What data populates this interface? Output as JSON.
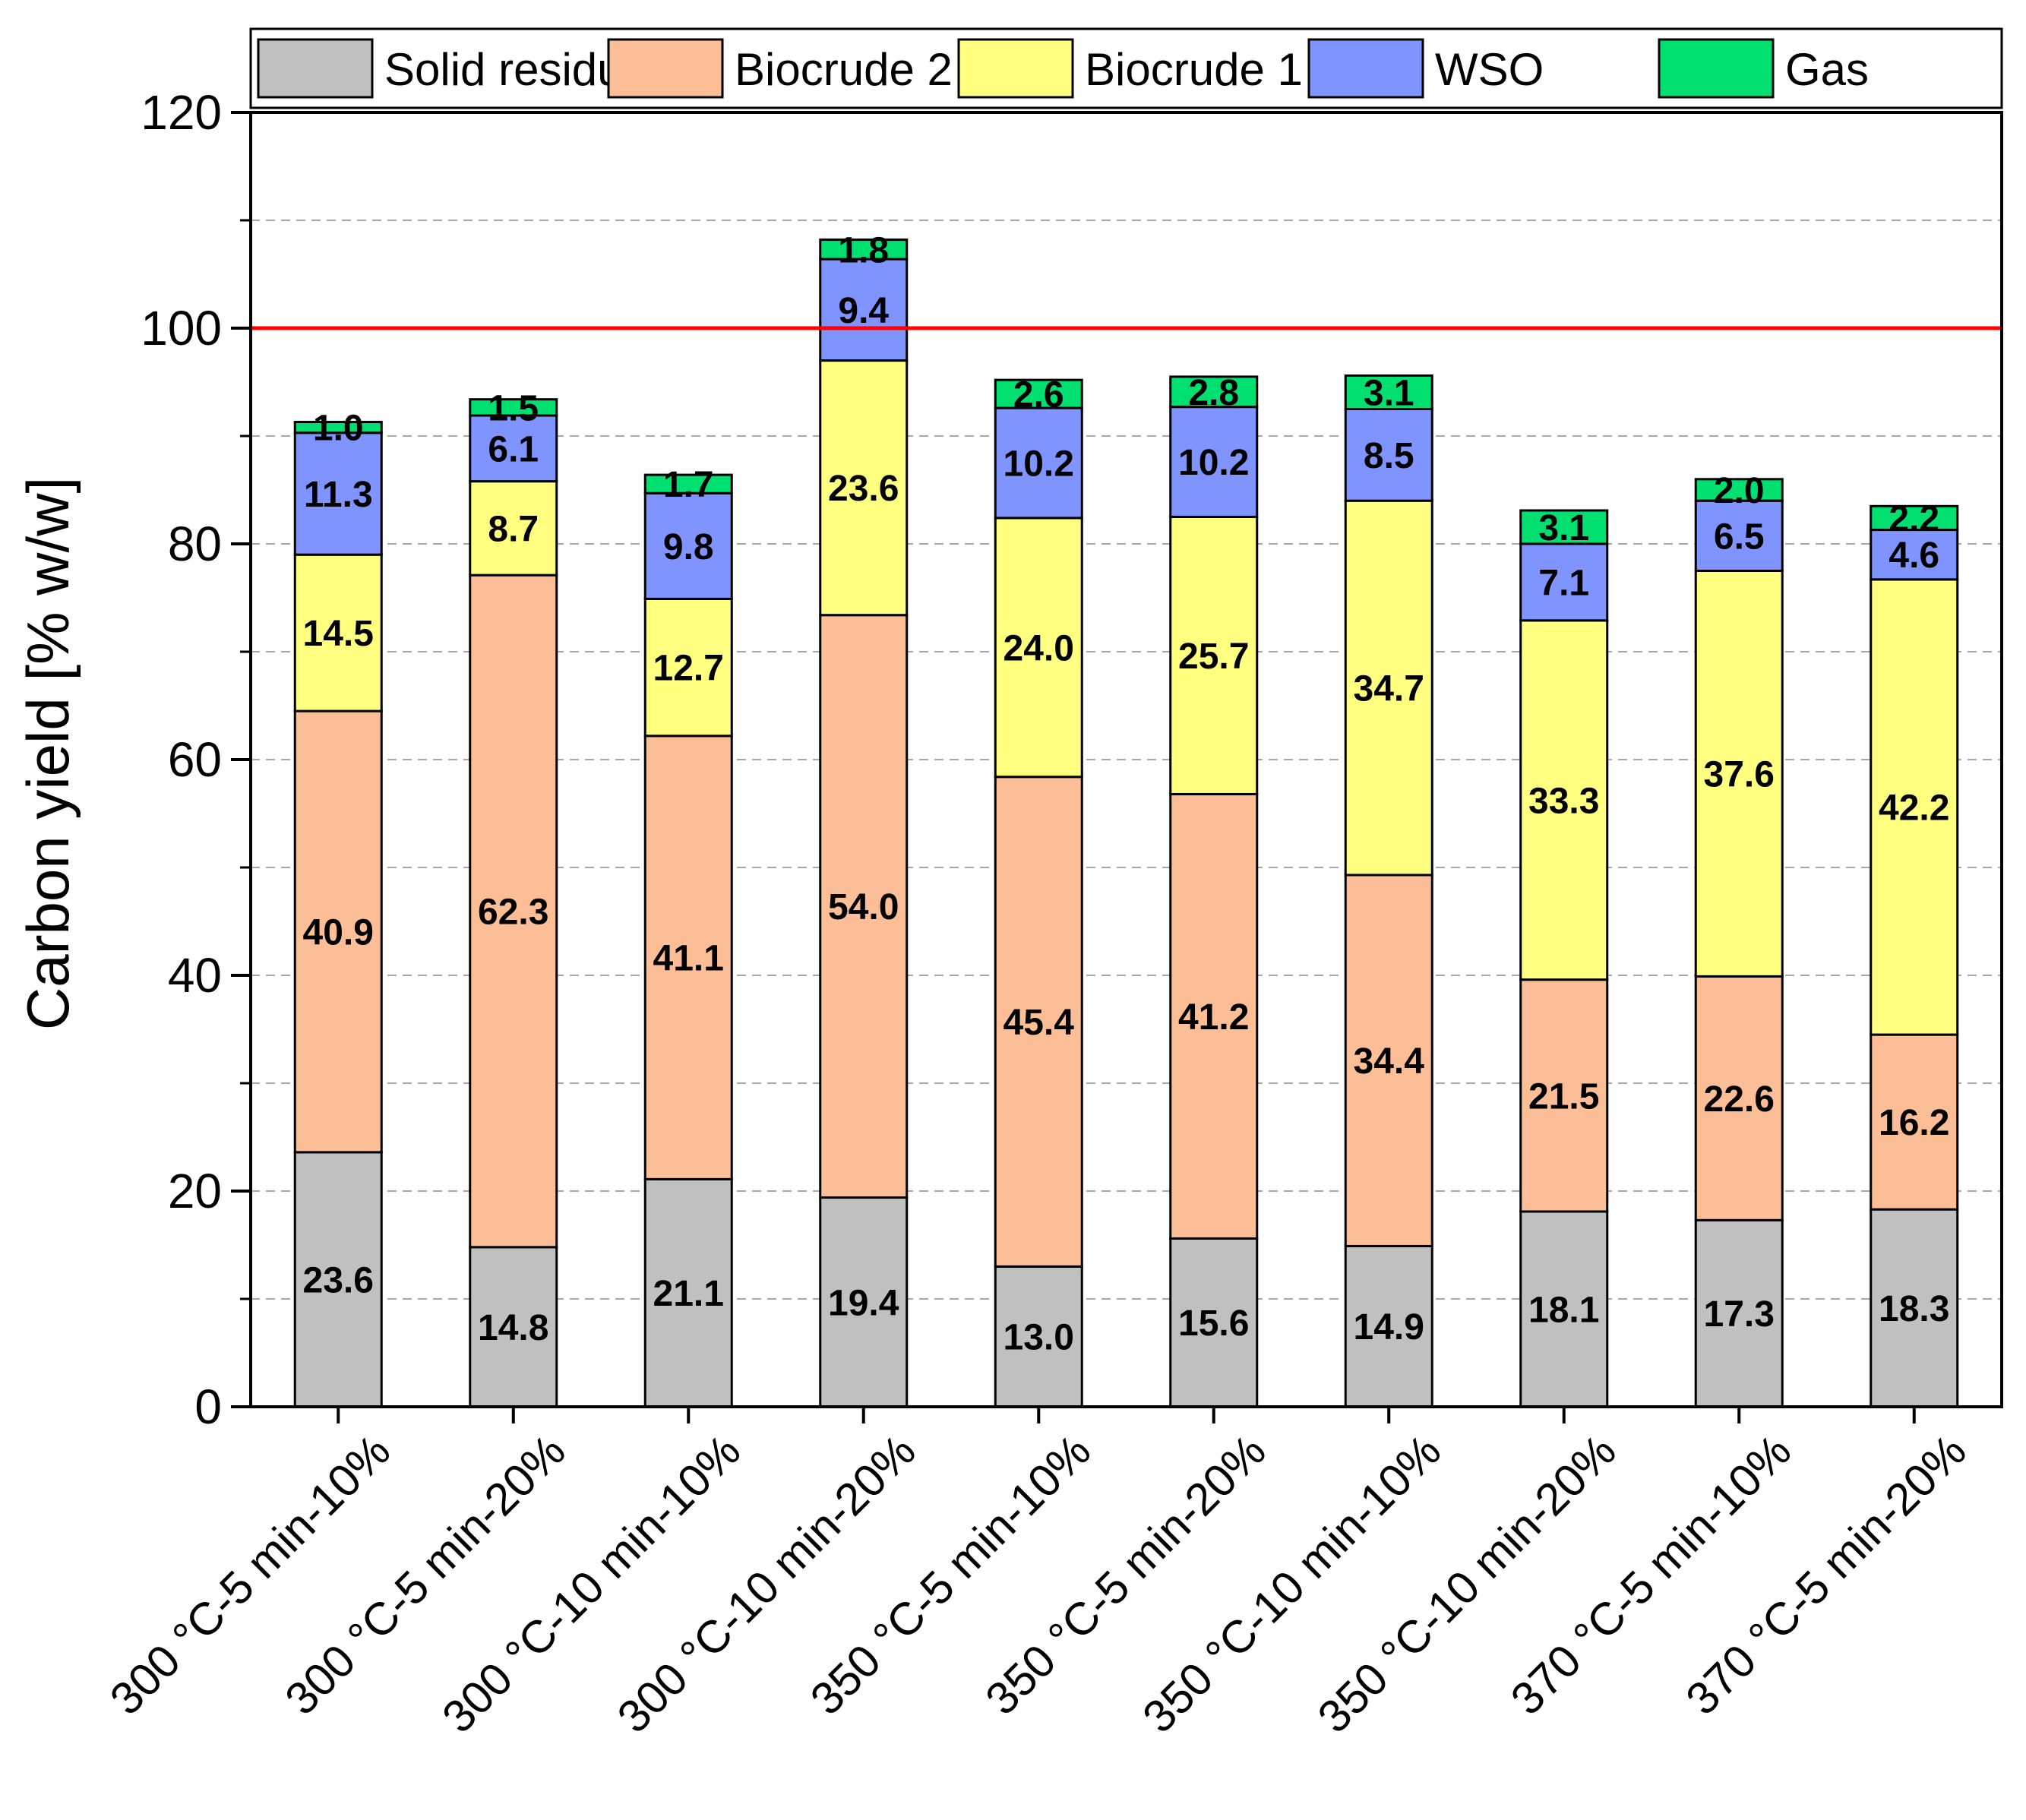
{
  "chart_data": {
    "type": "bar",
    "stacked": true,
    "title": "",
    "xlabel": "",
    "ylabel": "Carbon yield [% w/w]",
    "ylim": [
      0,
      120
    ],
    "yticks": [
      0,
      20,
      40,
      60,
      80,
      100,
      120
    ],
    "yticks_display": [
      "0",
      "20",
      "40",
      "60",
      "80",
      "100",
      "120"
    ],
    "grid": "dashed horizontal",
    "reference_line": {
      "value": 100,
      "color": "#ff0000"
    },
    "legend_position": "top",
    "categories": [
      "300 °C-5 min-10%",
      "300 °C-5 min-20%",
      "300 °C-10 min-10%",
      "300 °C-10 min-20%",
      "350 °C-5 min-10%",
      "350 °C-5 min-20%",
      "350 °C-10 min-10%",
      "350 °C-10 min-20%",
      "370 °C-5 min-10%",
      "370 °C-5 min-20%"
    ],
    "series": [
      {
        "name": "Solid residue",
        "color": "#c0c0c0",
        "values": [
          23.6,
          14.8,
          21.1,
          19.4,
          13.0,
          15.6,
          14.9,
          18.1,
          17.3,
          18.3
        ],
        "labels": [
          "23.6",
          "14.8",
          "21.1",
          "19.4",
          "13.0",
          "15.6",
          "14.9",
          "18.1",
          "17.3",
          "18.3"
        ]
      },
      {
        "name": "Biocrude 2",
        "color": "#fbbe96",
        "values": [
          40.9,
          62.3,
          41.1,
          54.0,
          45.4,
          41.2,
          34.4,
          21.5,
          22.6,
          16.2
        ],
        "labels": [
          "40.9",
          "62.3",
          "41.1",
          "54.0",
          "45.4",
          "41.2",
          "34.4",
          "21.5",
          "22.6",
          "16.2"
        ]
      },
      {
        "name": "Biocrude 1",
        "color": "#ffff80",
        "values": [
          14.5,
          8.7,
          12.7,
          23.6,
          24.0,
          25.7,
          34.7,
          33.3,
          37.6,
          42.2
        ],
        "labels": [
          "14.5",
          "8.7",
          "12.7",
          "23.6",
          "24.0",
          "25.7",
          "34.7",
          "33.3",
          "37.6",
          "42.2"
        ]
      },
      {
        "name": "WSO",
        "color": "#8094ff",
        "values": [
          11.3,
          6.1,
          9.8,
          9.4,
          10.2,
          10.2,
          8.5,
          7.1,
          6.5,
          4.6
        ],
        "labels": [
          "11.3",
          "6.1",
          "9.8",
          "9.4",
          "10.2",
          "10.2",
          "8.5",
          "7.1",
          "6.5",
          "4.6"
        ]
      },
      {
        "name": "Gas",
        "color": "#00e070",
        "values": [
          1.0,
          1.5,
          1.7,
          1.8,
          2.6,
          2.8,
          3.1,
          3.1,
          2.0,
          2.2
        ],
        "labels": [
          "1.0",
          "1.5",
          "1.7",
          "1.8",
          "2.6",
          "2.8",
          "3.1",
          "3.1",
          "2.0",
          "2.2"
        ]
      }
    ]
  }
}
